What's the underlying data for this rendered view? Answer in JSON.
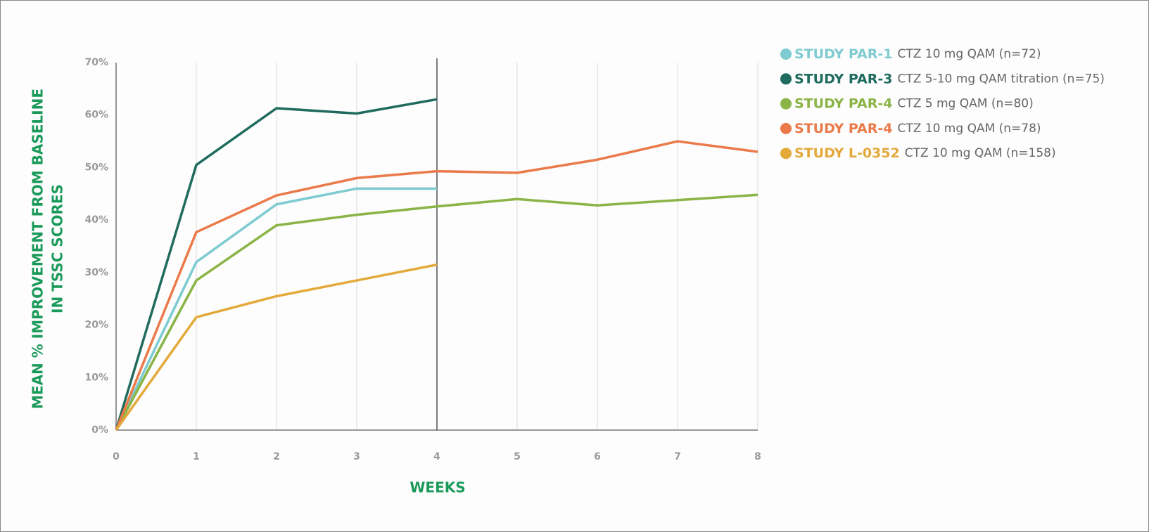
{
  "chart_data": {
    "type": "line",
    "ylabel": [
      "MEAN % IMPROVEMENT FROM BASELINE",
      "IN TSSC SCORES"
    ],
    "xlabel": "WEEKS",
    "x": [
      0,
      1,
      2,
      3,
      4,
      5,
      6,
      7,
      8
    ],
    "xlim": [
      0,
      8
    ],
    "xticks": [
      0,
      1,
      2,
      3,
      4,
      5,
      6,
      7,
      8
    ],
    "ylim": [
      0,
      70
    ],
    "yticks": [
      {
        "value": 0,
        "label": "0%"
      },
      {
        "value": 10,
        "label": "10%"
      },
      {
        "value": 20,
        "label": "20%"
      },
      {
        "value": 30,
        "label": "30%"
      },
      {
        "value": 40,
        "label": "40%"
      },
      {
        "value": 50,
        "label": "50%"
      },
      {
        "value": 60,
        "label": "60%"
      },
      {
        "value": 70,
        "label": "70%"
      }
    ],
    "grid": true,
    "vline": 4,
    "legend": "upper right",
    "series": [
      {
        "name": "STUDY PAR-1",
        "description": "CTZ 10 mg QAM (n=72)",
        "color": "#7ecbd1",
        "values": [
          0,
          32,
          43,
          46,
          46,
          null,
          null,
          null,
          null
        ]
      },
      {
        "name": "STUDY PAR-3",
        "description": "CTZ 5-10 mg QAM titration (n=75)",
        "color": "#1f6b5e",
        "values": [
          0,
          50.5,
          61.3,
          60.3,
          63,
          null,
          null,
          null,
          null
        ]
      },
      {
        "name": "STUDY PAR-4",
        "description": "CTZ 5 mg QAM (n=80)",
        "color": "#8ab446",
        "values": [
          0,
          28.5,
          39,
          41,
          42.6,
          44,
          42.8,
          43.8,
          44.8
        ]
      },
      {
        "name": "STUDY PAR-4",
        "description": "CTZ 10 mg QAM (n=78)",
        "color": "#ea7a4a",
        "values": [
          0,
          37.7,
          44.7,
          48,
          49.3,
          49,
          51.5,
          55,
          53
        ]
      },
      {
        "name": "STUDY L-0352",
        "description": "CTZ 10 mg QAM (n=158)",
        "color": "#e3a93a",
        "values": [
          0,
          21.5,
          25.5,
          28.5,
          31.5,
          null,
          null,
          null,
          null
        ]
      }
    ]
  }
}
